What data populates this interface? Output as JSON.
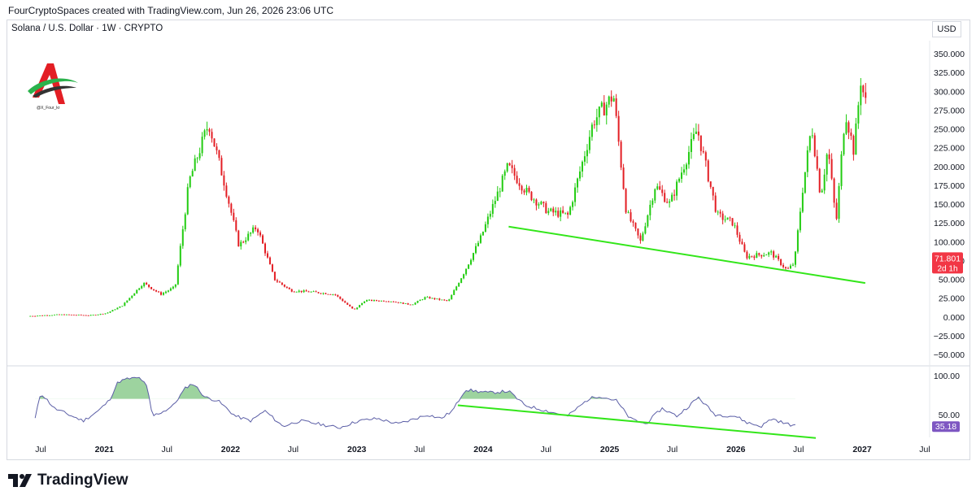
{
  "header": {
    "credit": "FourCryptoSpaces created with TradingView.com, Jun 26, 2026 23:06 UTC"
  },
  "toolbar": {
    "currency": "USD"
  },
  "legend": {
    "symbol": "Solana / U.S. Dollar · 1W · CRYPTO"
  },
  "watermark": {
    "handle": "@X_Four_kr"
  },
  "price_badge": {
    "price": "71.801",
    "countdown": "2d 1h"
  },
  "rsi_badge": {
    "value": "35.18"
  },
  "footer": {
    "brand": "TradingView"
  },
  "colors": {
    "up": "#22cc11",
    "down": "#e31e24",
    "trendline": "#33e61a",
    "rsi_line": "#5b5ea6",
    "badge_red": "#f23645",
    "badge_purple": "#7e57c2"
  },
  "chart_data": [
    {
      "type": "candlestick",
      "title": "Solana / U.S. Dollar · 1W · CRYPTO",
      "yticks": [
        "350.000",
        "325.000",
        "300.000",
        "275.000",
        "250.000",
        "225.000",
        "200.000",
        "175.000",
        "150.000",
        "125.000",
        "100.000",
        "75.000",
        "50.000",
        "25.000",
        "0.000",
        "−25.000",
        "−50.000"
      ],
      "xticks": [
        "Jul",
        "2021",
        "Jul",
        "2022",
        "Jul",
        "2023",
        "Jul",
        "2024",
        "Jul",
        "2025",
        "Jul",
        "2026",
        "Jul",
        "2027",
        "Jul"
      ],
      "ylim": [
        -55,
        365
      ],
      "grid": false,
      "last_price": 71.801,
      "path": [
        [
          "2020-06-01",
          1
        ],
        [
          "2020-09-01",
          3
        ],
        [
          "2020-12-01",
          2
        ],
        [
          "2021-01-15",
          5
        ],
        [
          "2021-03-01",
          15
        ],
        [
          "2021-05-01",
          45
        ],
        [
          "2021-06-20",
          30
        ],
        [
          "2021-08-01",
          40
        ],
        [
          "2021-09-10",
          180
        ],
        [
          "2021-11-06",
          258
        ],
        [
          "2021-12-20",
          180
        ],
        [
          "2022-02-01",
          95
        ],
        [
          "2022-03-25",
          120
        ],
        [
          "2022-05-15",
          50
        ],
        [
          "2022-07-01",
          35
        ],
        [
          "2022-09-01",
          33
        ],
        [
          "2022-11-05",
          30
        ],
        [
          "2022-12-31",
          9
        ],
        [
          "2023-02-01",
          22
        ],
        [
          "2023-04-15",
          21
        ],
        [
          "2023-06-15",
          16
        ],
        [
          "2023-07-25",
          26
        ],
        [
          "2023-09-30",
          21
        ],
        [
          "2023-11-15",
          60
        ],
        [
          "2024-01-01",
          105
        ],
        [
          "2024-03-20",
          200
        ],
        [
          "2024-05-15",
          165
        ],
        [
          "2024-07-15",
          140
        ],
        [
          "2024-09-10",
          135
        ],
        [
          "2024-11-22",
          260
        ],
        [
          "2025-01-19",
          295
        ],
        [
          "2025-02-25",
          140
        ],
        [
          "2025-04-07",
          100
        ],
        [
          "2025-05-20",
          175
        ],
        [
          "2025-07-01",
          150
        ],
        [
          "2025-09-18",
          250
        ],
        [
          "2025-11-15",
          135
        ],
        [
          "2025-12-31",
          125
        ],
        [
          "2026-02-06",
          80
        ],
        [
          "2026-04-20",
          85
        ],
        [
          "2026-06-05",
          62
        ],
        [
          "2026-06-26",
          71.8
        ],
        [
          "2026-07-20",
          170
        ],
        [
          "2026-08-15",
          255
        ],
        [
          "2026-09-10",
          160
        ],
        [
          "2026-10-01",
          225
        ],
        [
          "2026-10-25",
          125
        ],
        [
          "2026-11-20",
          275
        ],
        [
          "2026-12-15",
          220
        ],
        [
          "2027-01-05",
          320
        ],
        [
          "2027-01-15",
          285
        ]
      ],
      "annotations": [
        {
          "type": "trendline",
          "from": [
            "2024-03-15",
            120
          ],
          "to": [
            "2027-01-10",
            45
          ]
        }
      ]
    },
    {
      "type": "line",
      "name": "RSI",
      "yticks": [
        "100.00",
        "50.00"
      ],
      "ylim": [
        0,
        110
      ],
      "last_value": 35.18,
      "path": [
        [
          "2020-06-15",
          45
        ],
        [
          "2020-07-01",
          78
        ],
        [
          "2020-08-10",
          58
        ],
        [
          "2020-09-20",
          50
        ],
        [
          "2020-11-01",
          42
        ],
        [
          "2020-12-15",
          55
        ],
        [
          "2021-01-15",
          68
        ],
        [
          "2021-02-10",
          92
        ],
        [
          "2021-03-10",
          96
        ],
        [
          "2021-04-15",
          97
        ],
        [
          "2021-05-05",
          85
        ],
        [
          "2021-05-20",
          48
        ],
        [
          "2021-06-25",
          55
        ],
        [
          "2021-07-20",
          62
        ],
        [
          "2021-08-25",
          85
        ],
        [
          "2021-09-15",
          90
        ],
        [
          "2021-10-20",
          72
        ],
        [
          "2021-11-25",
          68
        ],
        [
          "2022-01-15",
          48
        ],
        [
          "2022-03-01",
          42
        ],
        [
          "2022-04-10",
          55
        ],
        [
          "2022-06-01",
          35
        ],
        [
          "2022-07-20",
          42
        ],
        [
          "2022-09-15",
          38
        ],
        [
          "2022-11-10",
          33
        ],
        [
          "2023-01-05",
          42
        ],
        [
          "2023-03-01",
          45
        ],
        [
          "2023-05-01",
          38
        ],
        [
          "2023-07-25",
          50
        ],
        [
          "2023-09-01",
          45
        ],
        [
          "2023-10-05",
          55
        ],
        [
          "2023-11-10",
          82
        ],
        [
          "2024-01-15",
          78
        ],
        [
          "2024-03-15",
          80
        ],
        [
          "2024-05-01",
          62
        ],
        [
          "2024-07-01",
          55
        ],
        [
          "2024-09-01",
          48
        ],
        [
          "2024-11-01",
          70
        ],
        [
          "2024-12-01",
          74
        ],
        [
          "2025-01-20",
          68
        ],
        [
          "2025-03-01",
          45
        ],
        [
          "2025-04-15",
          38
        ],
        [
          "2025-06-01",
          58
        ],
        [
          "2025-07-15",
          48
        ],
        [
          "2025-09-15",
          72
        ],
        [
          "2025-11-01",
          50
        ],
        [
          "2026-01-01",
          48
        ],
        [
          "2026-02-01",
          40
        ],
        [
          "2026-03-15",
          35
        ],
        [
          "2026-04-15",
          45
        ],
        [
          "2026-05-20",
          39
        ],
        [
          "2026-06-26",
          35.18
        ]
      ],
      "fill_above": 70,
      "annotations": [
        {
          "type": "trendline",
          "from": [
            "2023-10-20",
            62
          ],
          "to": [
            "2026-08-20",
            20
          ]
        }
      ]
    }
  ]
}
